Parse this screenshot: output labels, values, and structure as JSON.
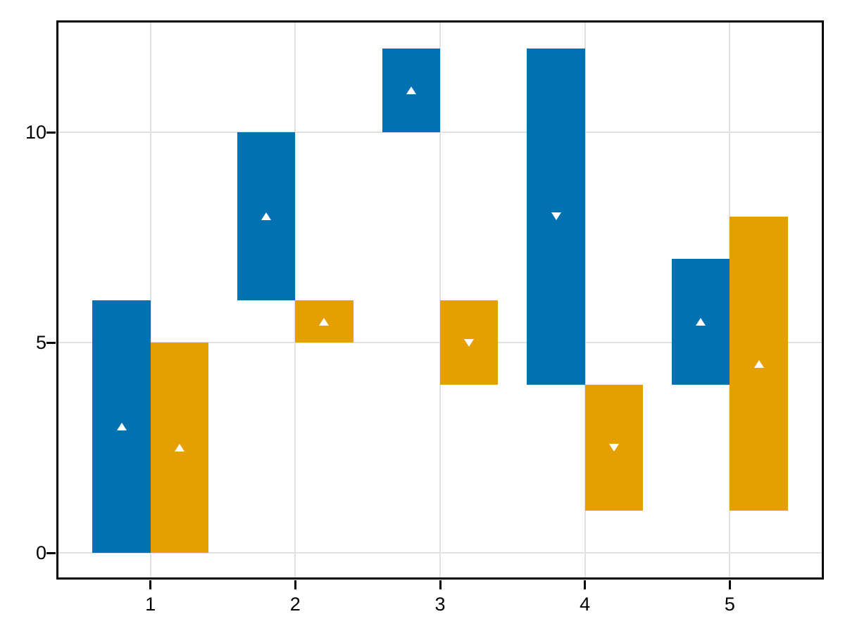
{
  "figure": {
    "background": "#ffffff",
    "axis_color": "#000000",
    "grid_color": "#e1e1e1",
    "tick_label_color": "#000000",
    "marker_color": "#ffffff"
  },
  "chart_data": {
    "type": "bar",
    "subtype": "floating-grouped-range-bars",
    "title": "",
    "xlabel": "",
    "ylabel": "",
    "bar_width": 0.4,
    "x_ticks": [
      1,
      2,
      3,
      4,
      5
    ],
    "y_ticks": [
      0,
      5,
      10
    ],
    "xlim": [
      0.36,
      5.64
    ],
    "ylim": [
      -0.6,
      12.63
    ],
    "grid": true,
    "legend": null,
    "marker_color": "#ffffff",
    "series": [
      {
        "name": "blue-series",
        "color": "#0072B2",
        "bars": [
          {
            "x": 0.8,
            "low": 0,
            "high": 6,
            "marker": 3,
            "direction": "up"
          },
          {
            "x": 1.8,
            "low": 6,
            "high": 10,
            "marker": 8,
            "direction": "up"
          },
          {
            "x": 2.8,
            "low": 10,
            "high": 12,
            "marker": 11,
            "direction": "up"
          },
          {
            "x": 3.8,
            "low": 4,
            "high": 12,
            "marker": 8,
            "direction": "down"
          },
          {
            "x": 4.8,
            "low": 4,
            "high": 7,
            "marker": 5.5,
            "direction": "up"
          }
        ]
      },
      {
        "name": "orange-series",
        "color": "#E69F00",
        "bars": [
          {
            "x": 1.2,
            "low": 0,
            "high": 5,
            "marker": 2.5,
            "direction": "up"
          },
          {
            "x": 2.2,
            "low": 5,
            "high": 6,
            "marker": 5.5,
            "direction": "up"
          },
          {
            "x": 3.2,
            "low": 4,
            "high": 6,
            "marker": 5,
            "direction": "down"
          },
          {
            "x": 4.2,
            "low": 1,
            "high": 4,
            "marker": 2.5,
            "direction": "down"
          },
          {
            "x": 5.2,
            "low": 1,
            "high": 8,
            "marker": 4.5,
            "direction": "up"
          }
        ]
      }
    ]
  }
}
